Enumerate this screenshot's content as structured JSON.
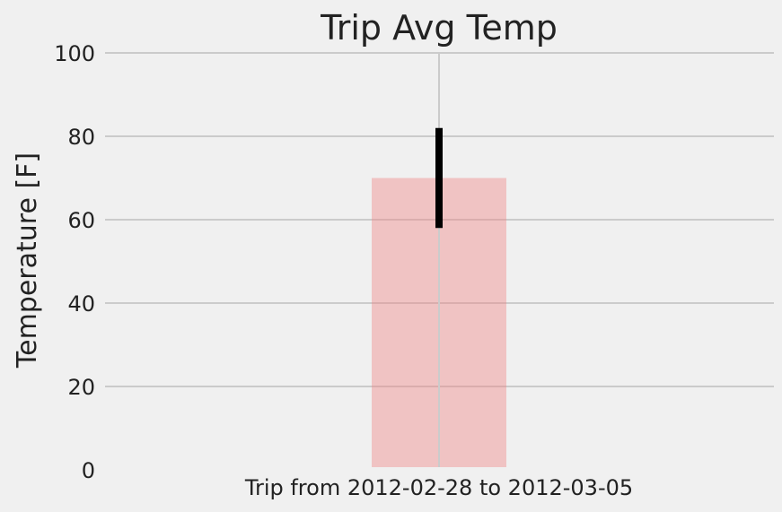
{
  "chart_data": {
    "type": "bar",
    "title": "Trip Avg Temp",
    "xlabel": "",
    "ylabel": "Temperature [F]",
    "categories": [
      "Trip from 2012-02-28 to 2012-03-05"
    ],
    "values": [
      70
    ],
    "error": {
      "low": 58,
      "high": 82
    },
    "ylim": [
      0,
      100
    ],
    "yticks": [
      0,
      20,
      40,
      60,
      80,
      100
    ],
    "grid": true,
    "bar_color": "#f08080",
    "bar_alpha": 0.4,
    "errorbar_color": "#000000",
    "background": "#f0f0f0",
    "grid_color": "#cbcbcb"
  }
}
